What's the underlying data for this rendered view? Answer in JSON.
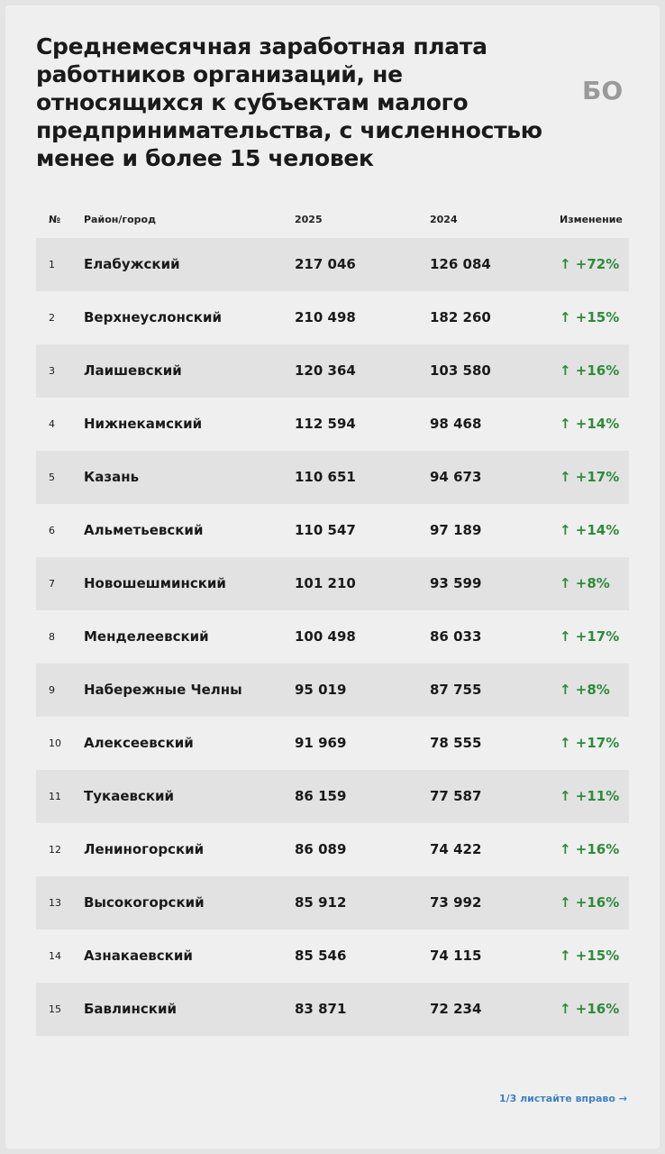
{
  "header": {
    "title": "Среднемесячная заработная плата работников организаций, не относящихся к субъектам малого предпринимательства, с численностью менее и более 15 человек",
    "logo": "БО"
  },
  "table": {
    "columns": [
      "№",
      "Район/город",
      "2025",
      "2024",
      "Изменение"
    ],
    "rows": [
      [
        "1",
        "Елабужский",
        "217 046",
        "126 084",
        "↑ +72%"
      ],
      [
        "2",
        "Верхнеуслонский",
        "210 498",
        "182 260",
        "↑ +15%"
      ],
      [
        "3",
        "Лаишевский",
        "120 364",
        "103 580",
        "↑ +16%"
      ],
      [
        "4",
        "Нижнекамский",
        "112 594",
        "98 468",
        "↑ +14%"
      ],
      [
        "5",
        "Казань",
        "110 651",
        "94 673",
        "↑ +17%"
      ],
      [
        "6",
        "Альметьевский",
        "110 547",
        "97 189",
        "↑ +14%"
      ],
      [
        "7",
        "Новошешминский",
        "101 210",
        "93 599",
        "↑ +8%"
      ],
      [
        "8",
        "Менделеевский",
        "100 498",
        "86 033",
        "↑ +17%"
      ],
      [
        "9",
        "Набережные Челны",
        "95 019",
        "87 755",
        "↑ +8%"
      ],
      [
        "10",
        "Алексеевский",
        "91 969",
        "78 555",
        "↑ +17%"
      ],
      [
        "11",
        "Тукаевский",
        "86 159",
        "77 587",
        "↑ +11%"
      ],
      [
        "12",
        "Лениногорский",
        "86 089",
        "74 422",
        "↑ +16%"
      ],
      [
        "13",
        "Высокогорский",
        "85 912",
        "73 992",
        "↑ +16%"
      ],
      [
        "14",
        "Азнакаевский",
        "85 546",
        "74 115",
        "↑ +15%"
      ],
      [
        "15",
        "Бавлинский",
        "83 871",
        "72 234",
        "↑ +16%"
      ]
    ]
  },
  "footer": {
    "pager": "1/3 листайте вправо →"
  }
}
